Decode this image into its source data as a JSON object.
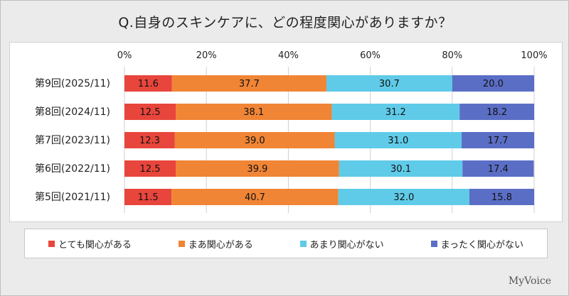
{
  "chart_data": {
    "type": "bar",
    "orientation": "horizontal-stacked",
    "title": "Q.自身のスキンケアに、どの程度関心がありますか？",
    "categories": [
      "第9回(2025/11)",
      "第8回(2024/11)",
      "第7回(2023/11)",
      "第6回(2022/11)",
      "第5回(2021/11)"
    ],
    "series": [
      {
        "name": "とても関心がある",
        "color": "#e8453c",
        "values": [
          11.6,
          12.5,
          12.3,
          12.5,
          11.5
        ]
      },
      {
        "name": "まあ関心がある",
        "color": "#f08535",
        "values": [
          37.7,
          38.1,
          39.0,
          39.9,
          40.7
        ]
      },
      {
        "name": "あまり関心がない",
        "color": "#5fcbe8",
        "values": [
          30.7,
          31.2,
          31.0,
          30.1,
          32.0
        ]
      },
      {
        "name": "まったく関心がない",
        "color": "#5b6ec6",
        "values": [
          20.0,
          18.2,
          17.7,
          17.4,
          15.8
        ]
      }
    ],
    "xticks": [
      "0%",
      "20%",
      "40%",
      "60%",
      "80%",
      "100%"
    ],
    "xlim": [
      0,
      100
    ],
    "legend": "bottom"
  },
  "logo": "MyVoice"
}
